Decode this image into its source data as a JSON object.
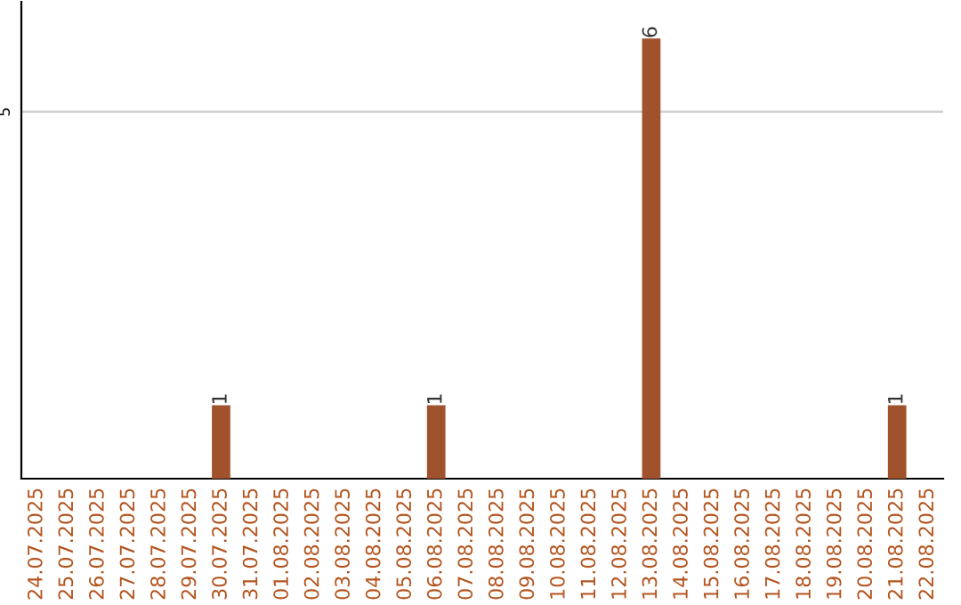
{
  "chart_data": {
    "type": "bar",
    "categories": [
      "24.07.2025",
      "25.07.2025",
      "26.07.2025",
      "27.07.2025",
      "28.07.2025",
      "29.07.2025",
      "30.07.2025",
      "31.07.2025",
      "01.08.2025",
      "02.08.2025",
      "03.08.2025",
      "04.08.2025",
      "05.08.2025",
      "06.08.2025",
      "07.08.2025",
      "08.08.2025",
      "09.08.2025",
      "10.08.2025",
      "11.08.2025",
      "12.08.2025",
      "13.08.2025",
      "14.08.2025",
      "15.08.2025",
      "16.08.2025",
      "17.08.2025",
      "18.08.2025",
      "19.08.2025",
      "20.08.2025",
      "21.08.2025",
      "22.08.2025"
    ],
    "values": [
      0,
      0,
      0,
      0,
      0,
      0,
      1,
      0,
      0,
      0,
      0,
      0,
      0,
      1,
      0,
      0,
      0,
      0,
      0,
      0,
      6,
      0,
      0,
      0,
      0,
      0,
      0,
      0,
      1,
      0
    ],
    "color": "#a0522d",
    "value_labels": [
      null,
      null,
      null,
      null,
      null,
      null,
      "1",
      null,
      null,
      null,
      null,
      null,
      null,
      "1",
      null,
      null,
      null,
      null,
      null,
      null,
      "6",
      null,
      null,
      null,
      null,
      null,
      null,
      null,
      "1",
      null
    ],
    "ylim": [
      0,
      6.5
    ],
    "yticks": [
      5
    ],
    "grid": "y"
  }
}
